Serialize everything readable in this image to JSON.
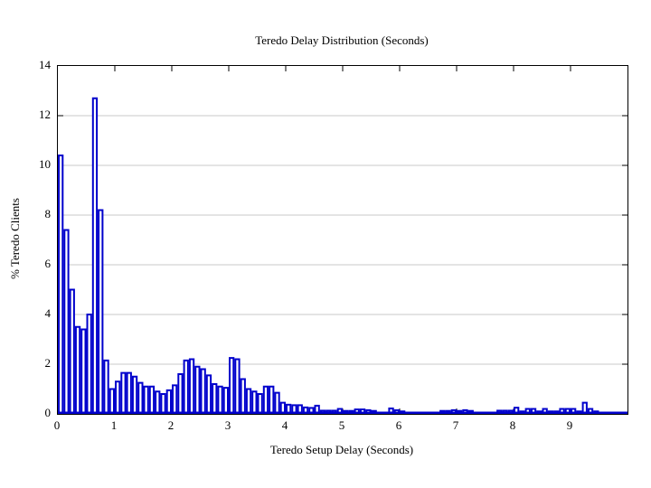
{
  "figure": {
    "title": "Teredo Delay Distribution (Seconds)",
    "xlabel": "Teredo Setup Delay (Seconds)",
    "ylabel": "% Teredo Clients"
  },
  "chart_data": {
    "type": "bar",
    "title": "Teredo Delay Distribution (Seconds)",
    "xlabel": "Teredo Setup Delay (Seconds)",
    "ylabel": "% Teredo Clients",
    "xlim": [
      0,
      10
    ],
    "ylim": [
      0,
      14
    ],
    "bin_start": 0,
    "bin_width": 0.1,
    "x_tick_labels": [
      "0",
      "1",
      "2",
      "3",
      "4",
      "5",
      "6",
      "7",
      "8",
      "9"
    ],
    "x_tick_values": [
      0,
      1,
      2,
      3,
      4,
      5,
      6,
      7,
      8,
      9
    ],
    "y_tick_labels": [
      "0",
      "2",
      "4",
      "6",
      "8",
      "10",
      "12",
      "14"
    ],
    "y_tick_values": [
      0,
      2,
      4,
      6,
      8,
      10,
      12,
      14
    ],
    "grid_y_values": [
      2,
      4,
      6,
      8,
      10,
      12
    ],
    "grid_on": true,
    "legend": "none",
    "bar_color": "#0000cc",
    "bar_fill": "#ffffff",
    "grid_color": "#c8c8c8",
    "frame_color": "#000000",
    "values": [
      10.4,
      7.4,
      5.0,
      3.5,
      3.4,
      4.0,
      12.7,
      8.2,
      2.15,
      1.0,
      1.3,
      1.65,
      1.65,
      1.5,
      1.25,
      1.1,
      1.1,
      0.9,
      0.8,
      0.95,
      1.15,
      1.6,
      2.15,
      2.2,
      1.9,
      1.8,
      1.55,
      1.2,
      1.1,
      1.05,
      2.25,
      2.2,
      1.4,
      1.0,
      0.9,
      0.8,
      1.1,
      1.1,
      0.85,
      0.45,
      0.37,
      0.35,
      0.35,
      0.26,
      0.24,
      0.33,
      0.13,
      0.13,
      0.13,
      0.2,
      0.12,
      0.12,
      0.18,
      0.18,
      0.15,
      0.12,
      0.05,
      0.05,
      0.22,
      0.15,
      0.1,
      0.05,
      0.05,
      0.05,
      0.05,
      0.05,
      0.05,
      0.12,
      0.12,
      0.15,
      0.12,
      0.15,
      0.12,
      0.05,
      0.05,
      0.05,
      0.05,
      0.13,
      0.13,
      0.13,
      0.25,
      0.1,
      0.2,
      0.2,
      0.1,
      0.2,
      0.1,
      0.1,
      0.2,
      0.2,
      0.2,
      0.1,
      0.45,
      0.2,
      0.1,
      0.05,
      0.05,
      0.05,
      0.05,
      0.05
    ]
  }
}
